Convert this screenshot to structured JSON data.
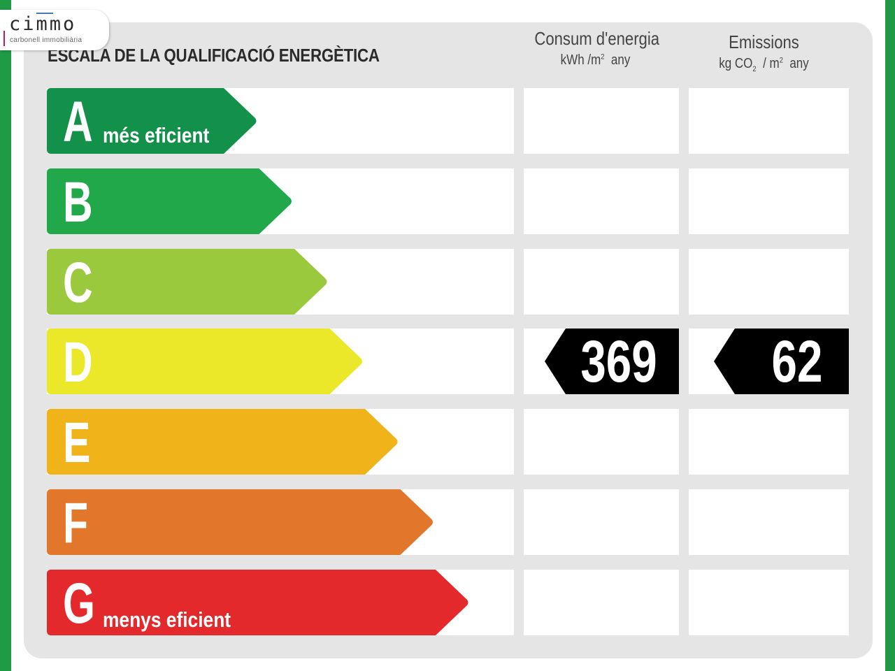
{
  "logo": {
    "word": "cimmo",
    "subtitle": "carbonell immobiliària"
  },
  "header": {
    "title": "ESCALA DE LA QUALIFICACIÓ ENERGÈTICA",
    "consumption": {
      "label": "Consum d'energia",
      "unit_prefix": "kWh /m",
      "unit_sup": "2",
      "unit_suffix": "any"
    },
    "emissions": {
      "label": "Emissions",
      "unit_prefix": "kg CO",
      "unit_sub": "2",
      "unit_mid": "/ m",
      "unit_sup": "2",
      "unit_suffix": "any"
    }
  },
  "ratings": [
    {
      "letter": "A",
      "description": "més eficient",
      "color": "#13914a"
    },
    {
      "letter": "B",
      "description": "",
      "color": "#21a84a"
    },
    {
      "letter": "C",
      "description": "",
      "color": "#9bc93d"
    },
    {
      "letter": "D",
      "description": "",
      "color": "#eae829"
    },
    {
      "letter": "E",
      "description": "",
      "color": "#f0b41a"
    },
    {
      "letter": "F",
      "description": "",
      "color": "#e2762a"
    },
    {
      "letter": "G",
      "description": "menys eficient",
      "color": "#e4292c"
    }
  ],
  "result": {
    "rating": "D",
    "consumption": "369",
    "emissions": "62",
    "badge_color": "#000000"
  }
}
